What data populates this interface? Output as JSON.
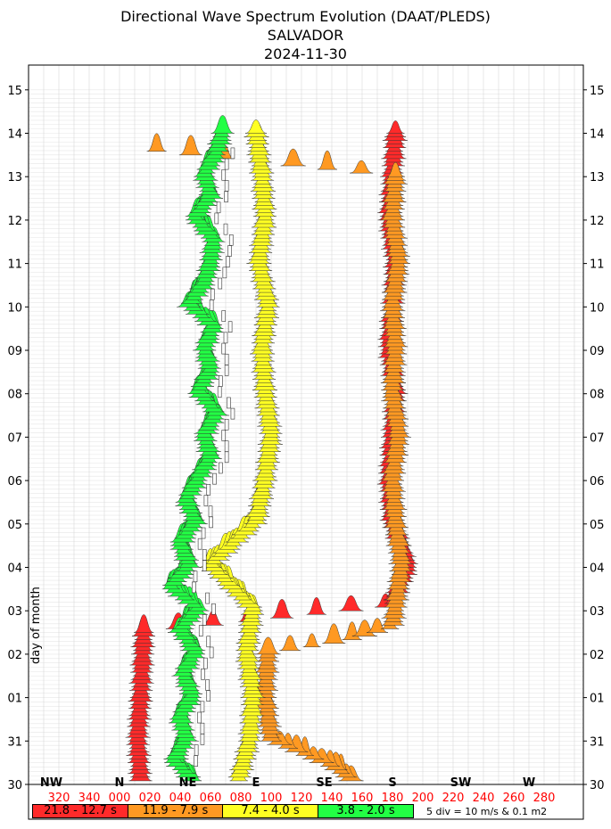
{
  "title_lines": [
    "Directional Wave Spectrum Evolution (DAAT/PLEDS)",
    "SALVADOR",
    "2024-11-30"
  ],
  "chart_data": {
    "type": "area",
    "title": "Directional Wave Spectrum Evolution (DAAT/PLEDS)",
    "subtitle": "SALVADOR 2024-11-30",
    "xlabel": "",
    "ylabel": "day of month",
    "x_ticks": [
      "320",
      "340",
      "000",
      "020",
      "040",
      "060",
      "080",
      "100",
      "120",
      "140",
      "160",
      "180",
      "200",
      "220",
      "240",
      "260",
      "280"
    ],
    "compass": [
      {
        "label": "NW",
        "deg": 315
      },
      {
        "label": "N",
        "deg": 0
      },
      {
        "label": "NE",
        "deg": 45
      },
      {
        "label": "E",
        "deg": 90
      },
      {
        "label": "SE",
        "deg": 135
      },
      {
        "label": "S",
        "deg": 180
      },
      {
        "label": "SW",
        "deg": 225
      },
      {
        "label": "W",
        "deg": 270
      }
    ],
    "y_ticks": [
      "30",
      "31",
      "01",
      "02",
      "03",
      "04",
      "05",
      "06",
      "07",
      "08",
      "09",
      "10",
      "11",
      "12",
      "13",
      "14",
      "15"
    ],
    "grid": true,
    "legend_placement": "bottom",
    "scale_note": "5 div = 10 m/s & 0.1 m2",
    "bands": [
      {
        "label": "21.8 - 12.7 s",
        "color": "#ff2a2a",
        "track": [
          [
            0,
            14
          ],
          [
            1,
            12
          ],
          [
            2,
            14
          ],
          [
            3.5,
            16
          ],
          [
            4.1,
            180
          ],
          [
            5,
            190
          ],
          [
            6,
            180
          ],
          [
            7,
            178
          ],
          [
            8,
            180
          ],
          [
            9,
            182
          ],
          [
            10,
            178
          ],
          [
            11,
            180
          ],
          [
            12,
            182
          ],
          [
            13,
            178
          ],
          [
            14,
            180
          ],
          [
            15,
            182
          ]
        ]
      },
      {
        "label": "11.9 - 7.9 s",
        "color": "#ff9922",
        "track": [
          [
            0,
            156
          ],
          [
            0.4,
            140
          ],
          [
            1,
            100
          ],
          [
            2,
            96
          ],
          [
            3,
            98
          ],
          [
            3.3,
            150
          ],
          [
            3.6,
            180
          ],
          [
            5,
            186
          ],
          [
            6,
            182
          ],
          [
            7,
            180
          ],
          [
            8,
            184
          ],
          [
            9,
            180
          ],
          [
            10,
            182
          ],
          [
            11,
            180
          ],
          [
            12,
            184
          ],
          [
            13,
            180
          ],
          [
            14,
            182
          ],
          [
            14.6,
            20
          ]
        ]
      },
      {
        "label": "7.4 - 4.0 s",
        "color": "#ffff22",
        "track": [
          [
            0,
            78
          ],
          [
            1,
            86
          ],
          [
            2,
            88
          ],
          [
            3,
            84
          ],
          [
            4,
            88
          ],
          [
            5,
            60
          ],
          [
            6,
            90
          ],
          [
            7,
            96
          ],
          [
            8,
            100
          ],
          [
            9,
            96
          ],
          [
            10,
            94
          ],
          [
            11,
            98
          ],
          [
            12,
            92
          ],
          [
            13,
            96
          ],
          [
            14,
            94
          ],
          [
            15,
            90
          ]
        ]
      },
      {
        "label": "3.8 - 2.0 s",
        "color": "#22ff44",
        "track": [
          [
            0,
            50
          ],
          [
            0.5,
            36
          ],
          [
            1,
            44
          ],
          [
            1.5,
            40
          ],
          [
            2,
            48
          ],
          [
            2.5,
            42
          ],
          [
            3,
            50
          ],
          [
            3.5,
            40
          ],
          [
            4,
            52
          ],
          [
            4.5,
            34
          ],
          [
            5,
            46
          ],
          [
            5.5,
            40
          ],
          [
            6,
            50
          ],
          [
            6.5,
            44
          ],
          [
            7,
            52
          ],
          [
            7.5,
            60
          ],
          [
            8,
            56
          ],
          [
            8.5,
            64
          ],
          [
            9,
            52
          ],
          [
            9.5,
            60
          ],
          [
            10,
            56
          ],
          [
            10.5,
            62
          ],
          [
            11,
            46
          ],
          [
            11.5,
            56
          ],
          [
            12,
            60
          ],
          [
            12.5,
            62
          ],
          [
            13,
            50
          ],
          [
            13.5,
            60
          ],
          [
            14,
            56
          ],
          [
            14.5,
            64
          ],
          [
            15,
            68
          ]
        ]
      }
    ]
  }
}
